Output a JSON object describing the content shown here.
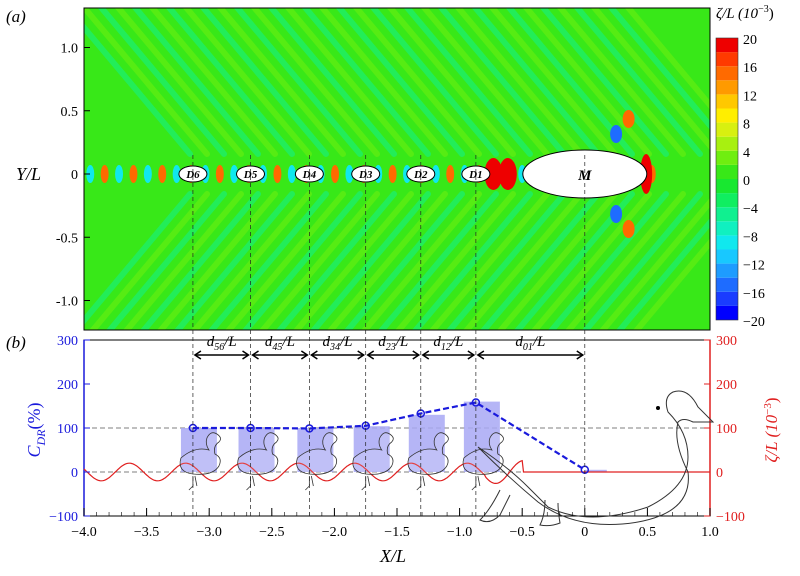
{
  "chart_data": [
    {
      "type": "heatmap",
      "panel_label": "(a)",
      "xlabel": "X/L",
      "ylabel": "Y/L",
      "xlim": [
        -4.0,
        1.0
      ],
      "ylim": [
        -1.25,
        1.3
      ],
      "yticks": [
        "1.0",
        "0.5",
        "0",
        "-0.5",
        "-1.0"
      ],
      "yticks_values": [
        1.0,
        0.5,
        0,
        -0.5,
        -1.0
      ],
      "colorbar": {
        "title": "ζ/L (10",
        "title_exp": "−3",
        "title_close": ")",
        "range": [
          -20,
          20
        ],
        "step": 2,
        "ticks": [
          "20",
          "16",
          "12",
          "8",
          "4",
          "0",
          "−4",
          "−8",
          "−12",
          "−16",
          "−20"
        ],
        "colors": [
          "#0000ff",
          "#1a3cff",
          "#1e6cff",
          "#1e9cff",
          "#18c8ff",
          "#10e8ee",
          "#10f0c0",
          "#10f090",
          "#10ee60",
          "#18e830",
          "#38e818",
          "#70ee10",
          "#a8f010",
          "#d8f010",
          "#ffee00",
          "#ffc800",
          "#ff9a00",
          "#ff6a00",
          "#ff3a00",
          "#ee0000"
        ]
      },
      "bodies": [
        {
          "label": "D6",
          "x": -3.13
        },
        {
          "label": "D5",
          "x": -2.67
        },
        {
          "label": "D4",
          "x": -2.2
        },
        {
          "label": "D3",
          "x": -1.75
        },
        {
          "label": "D2",
          "x": -1.31
        },
        {
          "label": "D1",
          "x": -0.87
        },
        {
          "label": "M",
          "x": 0.0
        }
      ]
    },
    {
      "type": "bar",
      "panel_label": "(b)",
      "xlabel": "X/L",
      "ylabel_left": {
        "main": "C",
        "sub": "DR",
        "tail": "(%)"
      },
      "ylabel_right": {
        "main": "ζ/L (10",
        "exp": "−3",
        "tail": ")"
      },
      "xlim": [
        -4.0,
        1.0
      ],
      "ylim_left": [
        -100,
        300
      ],
      "ylim_right": [
        -100,
        300
      ],
      "xticks": [
        "−4.0",
        "−3.5",
        "−3.0",
        "−2.5",
        "−2.0",
        "−1.5",
        "−1.0",
        "−0.5",
        "0",
        "0.5",
        "1.0"
      ],
      "xticks_values": [
        -4.0,
        -3.5,
        -3.0,
        -2.5,
        -2.0,
        -1.5,
        -1.0,
        -0.5,
        0,
        0.5,
        1.0
      ],
      "yticks": [
        "300",
        "200",
        "100",
        "0",
        "−100"
      ],
      "yticks_values": [
        300,
        200,
        100,
        0,
        -100
      ],
      "spacing_labels": [
        {
          "main": "d",
          "sub": "56",
          "tail": "/L",
          "from": -3.13,
          "to": -2.67
        },
        {
          "main": "d",
          "sub": "45",
          "tail": "/L",
          "from": -2.67,
          "to": -2.2
        },
        {
          "main": "d",
          "sub": "34",
          "tail": "/L",
          "from": -2.2,
          "to": -1.75
        },
        {
          "main": "d",
          "sub": "23",
          "tail": "/L",
          "from": -1.75,
          "to": -1.31
        },
        {
          "main": "d",
          "sub": "12",
          "tail": "/L",
          "from": -1.31,
          "to": -0.87
        },
        {
          "main": "d",
          "sub": "01",
          "tail": "/L",
          "from": -0.87,
          "to": 0.0
        }
      ],
      "series": [
        {
          "name": "C_DR bars",
          "x": [
            -3.13,
            -2.67,
            -2.2,
            -1.75,
            -1.31,
            -0.87,
            0.0
          ],
          "values": [
            100,
            100,
            100,
            104,
            130,
            160,
            5
          ],
          "color": "#a8a8f4"
        },
        {
          "name": "C_DR line",
          "x": [
            -3.13,
            -2.67,
            -2.2,
            -1.75,
            -1.31,
            -0.87,
            0.0
          ],
          "values": [
            100,
            100,
            99,
            105,
            133,
            158,
            5
          ],
          "color": "#1a1adc"
        },
        {
          "name": "ζ/L centerline",
          "color": "#e02020",
          "amplitude": 20,
          "wavelength": 0.45,
          "x_range": [
            -4.0,
            -0.55
          ]
        }
      ],
      "reference_lines": [
        100,
        0
      ]
    }
  ]
}
